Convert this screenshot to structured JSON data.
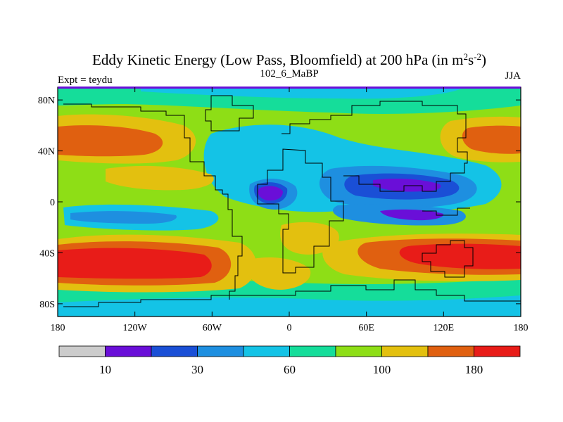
{
  "chart_data": {
    "type": "heatmap",
    "title": {
      "main": "Eddy Kinetic Energy (Low Pass, Bloomfield) at 200 hPa (in m",
      "sup1": "2",
      "mid": "s",
      "sup2": "-2",
      "end": ")"
    },
    "left_subtitle": "Expt = teydu",
    "center_subtitle": "102_6_MaBP",
    "right_subtitle": "JJA",
    "x_ticks": [
      {
        "value": -180,
        "label": "180"
      },
      {
        "value": -120,
        "label": "120W"
      },
      {
        "value": -60,
        "label": "60W"
      },
      {
        "value": 0,
        "label": "0"
      },
      {
        "value": 60,
        "label": "60E"
      },
      {
        "value": 120,
        "label": "120E"
      },
      {
        "value": 180,
        "label": "180"
      }
    ],
    "y_ticks": [
      {
        "value": 80,
        "label": "80N"
      },
      {
        "value": 40,
        "label": "40N"
      },
      {
        "value": 0,
        "label": "0"
      },
      {
        "value": -40,
        "label": "40S"
      },
      {
        "value": -80,
        "label": "80S"
      }
    ],
    "xlim": [
      -180,
      180
    ],
    "ylim": [
      -90,
      90
    ],
    "colorbar": {
      "colors": [
        "#cccccc",
        "#6a0fd8",
        "#1a4fd6",
        "#1e8fe0",
        "#14c3e6",
        "#15dd9a",
        "#8ede16",
        "#e3c00f",
        "#e06010",
        "#e81c18"
      ],
      "labels": [
        {
          "boundary": 1,
          "label": "10"
        },
        {
          "boundary": 3,
          "label": "30"
        },
        {
          "boundary": 5,
          "label": "60"
        },
        {
          "boundary": 7,
          "label": "100"
        },
        {
          "boundary": 9,
          "label": "180"
        }
      ]
    }
  }
}
